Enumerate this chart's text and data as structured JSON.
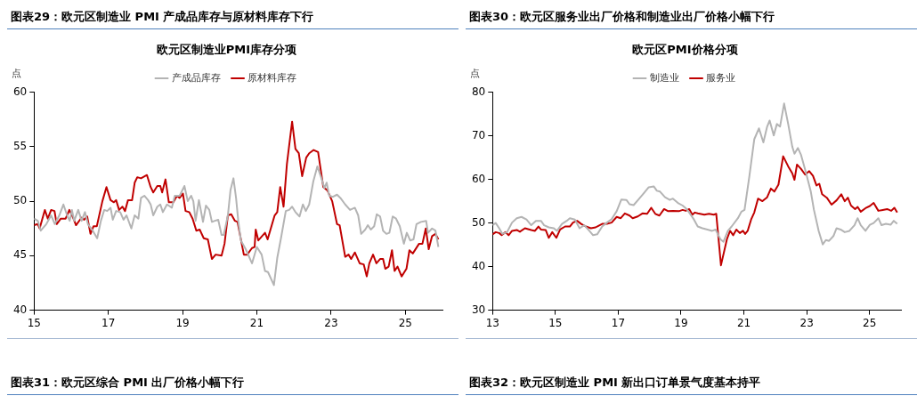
{
  "chart_data": [
    {
      "type": "line",
      "title": "图表29：欧元区制造业 PMI 产成品库存与原材料库存下行",
      "subtitle": "欧元区制造业PMI库存分项",
      "ylabel": "点",
      "legend": "top",
      "xlim": [
        2015,
        2026
      ],
      "xticks": [
        {
          "value": 2015,
          "label": "15"
        },
        {
          "value": 2017,
          "label": "17"
        },
        {
          "value": 2019,
          "label": "19"
        },
        {
          "value": 2021,
          "label": "21"
        },
        {
          "value": 2023,
          "label": "23"
        },
        {
          "value": 2025,
          "label": "25"
        }
      ],
      "ylim": [
        40,
        60
      ],
      "yticks": [
        40,
        45,
        50,
        55,
        60
      ],
      "annotations": [
        "图表31：欧元区综合 PMI 出厂价格小幅下行"
      ],
      "series": [
        {
          "name": "产成品库存",
          "color": "#b4b4b4",
          "x": [
            2015.0,
            2015.1,
            2015.18,
            2015.33,
            2015.46,
            2015.56,
            2015.68,
            2015.79,
            2015.89,
            2015.96,
            2016.02,
            2016.08,
            2016.19,
            2016.28,
            2016.37,
            2016.45,
            2016.58,
            2016.7,
            2016.8,
            2016.89,
            2016.97,
            2017.06,
            2017.12,
            2017.21,
            2017.32,
            2017.41,
            2017.49,
            2017.62,
            2017.71,
            2017.81,
            2017.88,
            2017.97,
            2018.07,
            2018.14,
            2018.21,
            2018.32,
            2018.4,
            2018.47,
            2018.58,
            2018.71,
            2018.79,
            2018.92,
            2019.05,
            2019.14,
            2019.23,
            2019.29,
            2019.35,
            2019.44,
            2019.55,
            2019.63,
            2019.72,
            2019.79,
            2019.87,
            2019.96,
            2020.05,
            2020.11,
            2020.22,
            2020.29,
            2020.37,
            2020.44,
            2020.5,
            2020.57,
            2020.7,
            2020.87,
            2021.0,
            2021.13,
            2021.22,
            2021.3,
            2021.46,
            2021.55,
            2021.65,
            2021.78,
            2021.87,
            2021.95,
            2022.04,
            2022.15,
            2022.24,
            2022.32,
            2022.41,
            2022.52,
            2022.63,
            2022.73,
            2022.82,
            2022.88,
            2022.95,
            2023.05,
            2023.16,
            2023.25,
            2023.38,
            2023.51,
            2023.64,
            2023.73,
            2023.81,
            2023.92,
            2023.99,
            2024.07,
            2024.16,
            2024.23,
            2024.32,
            2024.4,
            2024.49,
            2024.57,
            2024.66,
            2024.75,
            2024.85,
            2024.96,
            2025.04,
            2025.13,
            2025.22,
            2025.3,
            2025.42,
            2025.56,
            2025.61,
            2025.72,
            2025.81,
            2025.89
          ],
          "values": [
            48.4,
            48.2,
            47.3,
            47.9,
            48.7,
            47.9,
            48.7,
            49.7,
            48.7,
            48.2,
            49.2,
            48.2,
            49.2,
            48.2,
            49.0,
            47.9,
            47.3,
            46.6,
            48.2,
            49.2,
            49.1,
            49.4,
            48.3,
            49.1,
            49.0,
            48.3,
            48.7,
            47.5,
            48.7,
            48.4,
            50.3,
            50.5,
            50.1,
            49.7,
            48.7,
            49.5,
            49.7,
            49.0,
            49.7,
            49.4,
            50.5,
            50.5,
            51.4,
            50.0,
            50.5,
            50.0,
            48.2,
            50.1,
            48.1,
            49.6,
            49.2,
            48.1,
            48.2,
            48.3,
            46.9,
            46.9,
            48.7,
            51.0,
            52.1,
            50.3,
            48.2,
            46.4,
            45.6,
            44.3,
            45.8,
            45.1,
            43.6,
            43.5,
            42.3,
            44.8,
            46.6,
            49.1,
            49.2,
            49.5,
            49.0,
            48.6,
            49.7,
            49.1,
            49.7,
            51.8,
            53.2,
            52.2,
            51.2,
            51.7,
            50.5,
            50.4,
            50.6,
            50.3,
            49.7,
            49.2,
            49.4,
            48.7,
            47.0,
            47.4,
            47.8,
            47.4,
            47.7,
            48.8,
            48.6,
            47.3,
            47.0,
            47.1,
            48.6,
            48.4,
            47.7,
            46.1,
            47.1,
            46.4,
            46.5,
            47.9,
            48.1,
            48.2,
            47.1,
            47.5,
            47.3,
            45.8
          ]
        },
        {
          "name": "原材料库存",
          "color": "#c00000",
          "x": [
            2015.0,
            2015.1,
            2015.15,
            2015.29,
            2015.37,
            2015.46,
            2015.55,
            2015.61,
            2015.72,
            2015.85,
            2015.95,
            2016.06,
            2016.13,
            2016.28,
            2016.35,
            2016.43,
            2016.52,
            2016.6,
            2016.69,
            2016.84,
            2016.95,
            2017.06,
            2017.15,
            2017.21,
            2017.29,
            2017.38,
            2017.45,
            2017.53,
            2017.64,
            2017.71,
            2017.78,
            2017.88,
            2018.04,
            2018.14,
            2018.21,
            2018.32,
            2018.4,
            2018.45,
            2018.54,
            2018.63,
            2018.75,
            2018.85,
            2018.92,
            2019.01,
            2019.08,
            2019.18,
            2019.27,
            2019.37,
            2019.46,
            2019.57,
            2019.68,
            2019.79,
            2019.89,
            2020.05,
            2020.13,
            2020.22,
            2020.31,
            2020.41,
            2020.48,
            2020.65,
            2020.74,
            2020.87,
            2020.94,
            2020.97,
            2021.04,
            2021.22,
            2021.29,
            2021.48,
            2021.55,
            2021.63,
            2021.72,
            2021.81,
            2021.95,
            2022.04,
            2022.13,
            2022.22,
            2022.33,
            2022.41,
            2022.53,
            2022.65,
            2022.79,
            2022.9,
            2023.03,
            2023.16,
            2023.23,
            2023.38,
            2023.47,
            2023.54,
            2023.64,
            2023.77,
            2023.88,
            2023.96,
            2024.03,
            2024.13,
            2024.22,
            2024.32,
            2024.4,
            2024.46,
            2024.55,
            2024.64,
            2024.71,
            2024.79,
            2024.9,
            2025.03,
            2025.11,
            2025.2,
            2025.37,
            2025.46,
            2025.55,
            2025.63,
            2025.72,
            2025.81,
            2025.89
          ],
          "values": [
            47.8,
            47.9,
            47.5,
            49.2,
            48.4,
            49.2,
            49.1,
            47.9,
            48.4,
            48.4,
            49.2,
            48.4,
            47.8,
            48.5,
            48.3,
            48.6,
            47.0,
            47.7,
            47.7,
            50.0,
            51.3,
            50.1,
            49.9,
            50.1,
            49.2,
            49.5,
            49.1,
            50.1,
            50.1,
            51.7,
            52.2,
            52.1,
            52.4,
            51.3,
            50.8,
            51.4,
            51.4,
            50.8,
            52.0,
            49.9,
            49.9,
            50.5,
            50.3,
            50.7,
            49.1,
            49.0,
            48.4,
            47.3,
            47.4,
            46.6,
            46.5,
            44.7,
            45.1,
            45.0,
            46.1,
            48.7,
            48.8,
            48.2,
            48.1,
            45.1,
            45.1,
            45.7,
            45.8,
            47.4,
            46.4,
            47.1,
            46.5,
            48.7,
            49.0,
            51.3,
            49.5,
            53.4,
            57.3,
            54.8,
            54.4,
            52.3,
            54.0,
            54.4,
            54.7,
            54.5,
            51.3,
            51.0,
            50.0,
            47.9,
            47.8,
            44.9,
            45.1,
            44.7,
            45.3,
            44.3,
            44.2,
            43.1,
            44.3,
            45.1,
            44.3,
            44.7,
            44.7,
            43.8,
            44.0,
            45.5,
            43.6,
            44.0,
            43.1,
            43.8,
            45.5,
            45.2,
            46.1,
            46.1,
            47.5,
            45.6,
            46.8,
            47.0,
            46.5
          ]
        }
      ]
    },
    {
      "type": "line",
      "title": "图表30：欧元区服务业出厂价格和制造业出厂价格小幅下行",
      "subtitle": "欧元区PMI价格分项",
      "ylabel": "点",
      "legend": "top",
      "xlim": [
        2013,
        2026
      ],
      "xticks": [
        {
          "value": 2013,
          "label": "13"
        },
        {
          "value": 2015,
          "label": "15"
        },
        {
          "value": 2017,
          "label": "17"
        },
        {
          "value": 2019,
          "label": "19"
        },
        {
          "value": 2021,
          "label": "21"
        },
        {
          "value": 2023,
          "label": "23"
        },
        {
          "value": 2025,
          "label": "25"
        }
      ],
      "ylim": [
        30,
        80
      ],
      "yticks": [
        30,
        40,
        50,
        60,
        70,
        80
      ],
      "annotations": [
        "图表32：欧元区制造业 PMI 新出口订单景气度基本持平"
      ],
      "series": [
        {
          "name": "制造业",
          "color": "#b4b4b4",
          "x": [
            2013.0,
            2013.1,
            2013.21,
            2013.31,
            2013.46,
            2013.62,
            2013.77,
            2013.92,
            2014.08,
            2014.23,
            2014.38,
            2014.54,
            2014.64,
            2014.79,
            2014.95,
            2015.05,
            2015.21,
            2015.36,
            2015.46,
            2015.62,
            2015.77,
            2015.92,
            2016.08,
            2016.2,
            2016.33,
            2016.49,
            2016.64,
            2016.79,
            2016.95,
            2017.1,
            2017.26,
            2017.36,
            2017.49,
            2017.67,
            2017.82,
            2017.97,
            2018.13,
            2018.23,
            2018.33,
            2018.49,
            2018.64,
            2018.74,
            2018.9,
            2019.05,
            2019.15,
            2019.26,
            2019.41,
            2019.53,
            2019.68,
            2019.84,
            2019.99,
            2020.1,
            2020.25,
            2020.35,
            2020.49,
            2020.61,
            2020.81,
            2020.92,
            2021.02,
            2021.17,
            2021.33,
            2021.48,
            2021.62,
            2021.74,
            2021.82,
            2021.95,
            2022.05,
            2022.15,
            2022.28,
            2022.41,
            2022.54,
            2022.61,
            2022.72,
            2022.82,
            2022.97,
            2023.13,
            2023.23,
            2023.38,
            2023.51,
            2023.61,
            2023.71,
            2023.85,
            2023.95,
            2024.08,
            2024.21,
            2024.36,
            2024.52,
            2024.62,
            2024.72,
            2024.87,
            2025.01,
            2025.13,
            2025.28,
            2025.38,
            2025.52,
            2025.67,
            2025.77,
            2025.88
          ],
          "values": [
            49.5,
            50.0,
            48.8,
            47.5,
            47.9,
            50.1,
            51.1,
            51.4,
            50.8,
            49.5,
            50.5,
            50.5,
            49.5,
            49.0,
            48.8,
            48.2,
            49.8,
            50.5,
            51.1,
            50.8,
            48.8,
            49.5,
            48.2,
            47.2,
            47.4,
            49.2,
            50.1,
            50.9,
            52.7,
            55.4,
            55.3,
            54.3,
            54.1,
            55.6,
            56.9,
            58.2,
            58.4,
            57.4,
            57.2,
            55.9,
            55.3,
            55.6,
            54.6,
            54.0,
            53.4,
            52.4,
            50.8,
            49.2,
            48.8,
            48.5,
            48.2,
            48.5,
            46.3,
            45.7,
            48.2,
            49.2,
            51.1,
            52.6,
            53.0,
            60.5,
            69.2,
            71.7,
            68.5,
            72.1,
            73.5,
            70.1,
            72.7,
            72.1,
            77.4,
            72.7,
            67.5,
            65.9,
            67.2,
            65.6,
            61.7,
            57.2,
            53.0,
            48.2,
            45.1,
            46.1,
            45.9,
            47.0,
            48.8,
            48.5,
            47.9,
            48.2,
            49.5,
            51.1,
            49.5,
            48.2,
            49.6,
            50.0,
            51.1,
            49.5,
            49.8,
            49.6,
            50.5,
            49.8
          ]
        },
        {
          "name": "服务业",
          "color": "#c00000",
          "x": [
            2013.0,
            2013.1,
            2013.21,
            2013.29,
            2013.41,
            2013.51,
            2013.62,
            2013.77,
            2013.87,
            2014.03,
            2014.23,
            2014.35,
            2014.46,
            2014.54,
            2014.69,
            2014.79,
            2014.9,
            2015.03,
            2015.15,
            2015.31,
            2015.46,
            2015.56,
            2015.69,
            2015.82,
            2015.97,
            2016.13,
            2016.28,
            2016.38,
            2016.49,
            2016.64,
            2016.79,
            2016.95,
            2017.08,
            2017.21,
            2017.36,
            2017.46,
            2017.62,
            2017.77,
            2017.92,
            2018.05,
            2018.18,
            2018.31,
            2018.46,
            2018.59,
            2018.74,
            2018.93,
            2019.05,
            2019.15,
            2019.26,
            2019.36,
            2019.44,
            2019.53,
            2019.74,
            2019.89,
            2020.04,
            2020.12,
            2020.27,
            2020.46,
            2020.56,
            2020.66,
            2020.76,
            2020.87,
            2020.97,
            2021.04,
            2021.12,
            2021.23,
            2021.33,
            2021.45,
            2021.59,
            2021.74,
            2021.86,
            2021.97,
            2022.1,
            2022.25,
            2022.41,
            2022.54,
            2022.61,
            2022.69,
            2022.82,
            2022.95,
            2023.08,
            2023.2,
            2023.31,
            2023.4,
            2023.49,
            2023.64,
            2023.79,
            2023.95,
            2024.1,
            2024.21,
            2024.31,
            2024.41,
            2024.54,
            2024.62,
            2024.72,
            2024.87,
            2025.01,
            2025.13,
            2025.28,
            2025.42,
            2025.56,
            2025.69,
            2025.79,
            2025.88
          ],
          "values": [
            47.4,
            47.9,
            47.7,
            47.2,
            47.9,
            47.2,
            48.2,
            48.4,
            48.0,
            48.8,
            48.4,
            48.2,
            49.2,
            48.5,
            48.4,
            46.6,
            47.9,
            46.6,
            48.5,
            49.2,
            49.2,
            50.1,
            50.5,
            49.8,
            49.2,
            48.8,
            49.0,
            49.4,
            49.8,
            49.8,
            50.1,
            51.4,
            51.1,
            52.2,
            51.7,
            51.1,
            51.5,
            52.2,
            52.1,
            53.5,
            52.1,
            51.7,
            53.2,
            52.7,
            52.8,
            52.7,
            53.0,
            52.8,
            53.2,
            51.9,
            52.4,
            52.2,
            51.9,
            52.1,
            51.9,
            52.1,
            40.3,
            46.3,
            48.2,
            47.2,
            48.5,
            47.7,
            48.2,
            47.5,
            48.2,
            50.8,
            52.4,
            55.6,
            55.0,
            55.9,
            57.9,
            57.2,
            58.8,
            65.3,
            63.0,
            61.4,
            59.9,
            63.4,
            62.4,
            61.1,
            61.9,
            60.8,
            58.6,
            59.0,
            56.6,
            55.8,
            54.2,
            55.2,
            56.6,
            55.0,
            55.8,
            54.0,
            53.2,
            53.7,
            52.6,
            53.4,
            53.9,
            54.6,
            52.8,
            53.0,
            53.2,
            52.8,
            53.5,
            52.4
          ]
        }
      ]
    }
  ]
}
